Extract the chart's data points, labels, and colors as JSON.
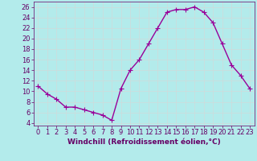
{
  "x": [
    0,
    1,
    2,
    3,
    4,
    5,
    6,
    7,
    8,
    9,
    10,
    11,
    12,
    13,
    14,
    15,
    16,
    17,
    18,
    19,
    20,
    21,
    22,
    23
  ],
  "y": [
    11,
    9.5,
    8.5,
    7,
    7,
    6.5,
    6,
    5.5,
    4.5,
    10.5,
    14,
    16,
    19,
    22,
    25,
    25.5,
    25.5,
    26,
    25,
    23,
    19,
    15,
    13,
    10.5
  ],
  "line_color": "#990099",
  "marker": "+",
  "marker_size": 4,
  "line_width": 1,
  "bg_color": "#b3ebeb",
  "grid_color": "#ccdddd",
  "xlabel": "Windchill (Refroidissement éolien,°C)",
  "xlabel_color": "#660066",
  "xlabel_fontsize": 6.5,
  "tick_color": "#660066",
  "tick_fontsize": 6,
  "ylim": [
    3.5,
    27
  ],
  "xlim": [
    -0.5,
    23.5
  ],
  "yticks": [
    4,
    6,
    8,
    10,
    12,
    14,
    16,
    18,
    20,
    22,
    24,
    26
  ],
  "xticks": [
    0,
    1,
    2,
    3,
    4,
    5,
    6,
    7,
    8,
    9,
    10,
    11,
    12,
    13,
    14,
    15,
    16,
    17,
    18,
    19,
    20,
    21,
    22,
    23
  ]
}
